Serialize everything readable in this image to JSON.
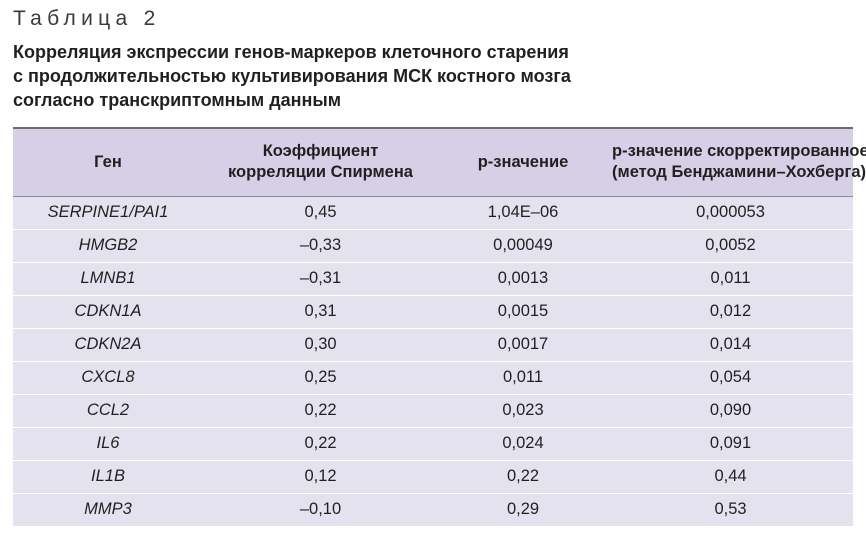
{
  "table_label": "Таблица 2",
  "caption_lines": [
    "Корреляция экспрессии генов-маркеров клеточного старения",
    "с продолжительностью культивирования МСК костного мозга",
    "согласно транскриптомным данным"
  ],
  "table": {
    "headers": [
      [
        "Ген"
      ],
      [
        "Коэффициент",
        "корреляции Спирмена"
      ],
      [
        "p-значение"
      ],
      [
        "p-значение скорректированное",
        "(метод Бенджамини–Хохберга)"
      ]
    ],
    "rows": [
      [
        "SERPINE1/PAI1",
        "0,45",
        "1,04E–06",
        "0,000053"
      ],
      [
        "HMGB2",
        "–0,33",
        "0,00049",
        "0,0052"
      ],
      [
        "LMNB1",
        "–0,31",
        "0,0013",
        "0,011"
      ],
      [
        "CDKN1A",
        "0,31",
        "0,0015",
        "0,012"
      ],
      [
        "CDKN2A",
        "0,30",
        "0,0017",
        "0,014"
      ],
      [
        "CXCL8",
        "0,25",
        "0,011",
        "0,054"
      ],
      [
        "CCL2",
        "0,22",
        "0,023",
        "0,090"
      ],
      [
        "IL6",
        "0,22",
        "0,024",
        "0,091"
      ],
      [
        "IL1B",
        "0,12",
        "0,22",
        "0,44"
      ],
      [
        "MMP3",
        "–0,10",
        "0,29",
        "0,53"
      ]
    ]
  },
  "colors": {
    "header_background": "#d5d0e6",
    "row_background": "#e5e2ef",
    "text": "#231f20"
  }
}
